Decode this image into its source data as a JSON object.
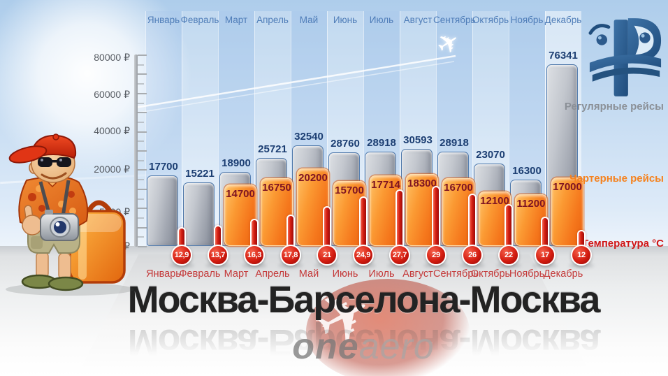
{
  "title": "Москва-Барселона-Москва",
  "watermark": {
    "bold": "one",
    "light": "aero"
  },
  "legend": {
    "regular": "Регулярные рейсы",
    "charter": "Чартерные рейсы",
    "temperature": "Температура °C"
  },
  "y_axis": {
    "labels": [
      "80000 ₽",
      "60000 ₽",
      "40000 ₽",
      "20000 ₽",
      "5000 ₽",
      "0 ₽"
    ]
  },
  "temps_display": [
    "12,9",
    "13,7",
    "16,3",
    "17,8",
    "21",
    "24,9",
    "27,7",
    "29",
    "26",
    "22",
    "17",
    "12"
  ],
  "icons": {
    "plane_top": "✈",
    "plane_globe": "✈",
    "logo": "oneaero-logo",
    "tourist": "tourist-mascot"
  },
  "colors": {
    "regular_bar": "#9aa0ac",
    "charter_bar": "#f5771c",
    "temperature": "#d01515",
    "month_top": "#4f7db8",
    "month_bottom": "#c43a3a",
    "regular_value": "#1c3e72",
    "charter_value": "#7e1422",
    "logo_blue": "#2c5a8c"
  },
  "chart_data": {
    "type": "bar",
    "title": "Москва-Барселона-Москва",
    "categories": [
      "Январь",
      "Февраль",
      "Март",
      "Апрель",
      "Май",
      "Июнь",
      "Июль",
      "Август",
      "Сентябрь",
      "Октябрь",
      "Ноябрь",
      "Декабрь"
    ],
    "series": [
      {
        "name": "Регулярные рейсы",
        "unit": "₽",
        "values": [
          17700,
          15221,
          18900,
          25721,
          32540,
          28760,
          28918,
          30593,
          28918,
          23070,
          16300,
          76341
        ]
      },
      {
        "name": "Чартерные рейсы",
        "unit": "₽",
        "values": [
          null,
          null,
          14700,
          16750,
          20200,
          15700,
          17714,
          18300,
          16700,
          12100,
          11200,
          17000
        ]
      },
      {
        "name": "Температура °C",
        "unit": "°C",
        "values": [
          12.9,
          13.7,
          16.3,
          17.8,
          21,
          24.9,
          27.7,
          29,
          26,
          22,
          17,
          12
        ]
      }
    ],
    "y_axis_ticks": [
      0,
      5000,
      20000,
      40000,
      60000,
      80000
    ],
    "ylim": [
      0,
      80000
    ],
    "currency": "₽",
    "grid": false,
    "legend_position": "right"
  }
}
